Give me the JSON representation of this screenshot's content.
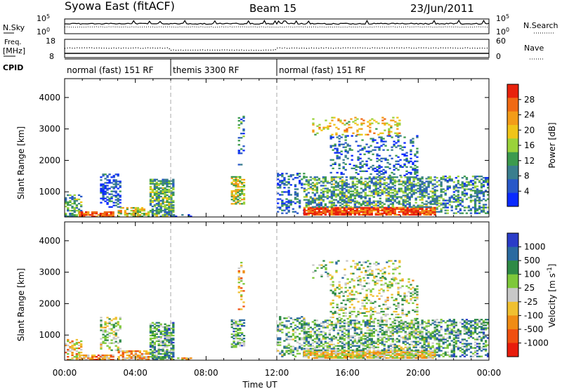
{
  "header": {
    "station": "Syowa East (fitACF)",
    "beam": "Beam 15",
    "date": "23/Jun/2011"
  },
  "labels": {
    "nsky": "N.Sky",
    "nsearch": "N.Search",
    "freq": "Freq.",
    "mhz": "[MHz]",
    "nave": "Nave",
    "cpid": "CPID"
  },
  "tick_labels": {
    "noise_top": "10^5",
    "noise_bottom": "10^0",
    "freq_top": "18",
    "freq_bottom": "8",
    "nave_top": "60",
    "nave_bottom": "0"
  },
  "cpid_segments": [
    {
      "label": "normal (fast) 151 RF",
      "start_hour": 0,
      "end_hour": 6
    },
    {
      "label": "themis 3300 RF",
      "start_hour": 6,
      "end_hour": 12
    },
    {
      "label": "normal (fast) 151 RF",
      "start_hour": 12,
      "end_hour": 24
    }
  ],
  "colors": {
    "power_scale": [
      "#0a2aff",
      "#2858c8",
      "#3a7e8e",
      "#3c9a4e",
      "#9ad23a",
      "#f0c418",
      "#f39c18",
      "#f06a14",
      "#e8220c"
    ],
    "velocity_scale": [
      "#2a3cc8",
      "#2a6aa0",
      "#2e8a46",
      "#7ec83a",
      "#c8c8c8",
      "#f0c030",
      "#f08c14",
      "#f05010",
      "#e81c0c"
    ]
  },
  "chart_data": [
    {
      "type": "heatmap",
      "name": "power",
      "ylabel": "Slant Range [km]",
      "xlabel": "",
      "xlim": [
        0,
        24
      ],
      "ylim": [
        200,
        4600
      ],
      "y_ticks": [
        1000,
        2000,
        3000,
        4000
      ],
      "colorbar_label": "Power [dB]",
      "colorbar_ticks": [
        4,
        8,
        12,
        16,
        20,
        24,
        28
      ],
      "colorbar_range": [
        0,
        32
      ],
      "regions": [
        {
          "t0": 0.0,
          "t1": 1.0,
          "r0": 200,
          "r1": 900,
          "level": 0.35,
          "density": 0.55
        },
        {
          "t0": 0.8,
          "t1": 2.8,
          "r0": 200,
          "r1": 400,
          "level": 0.9,
          "density": 0.8
        },
        {
          "t0": 2.0,
          "t1": 3.2,
          "r0": 500,
          "r1": 1600,
          "level": 0.15,
          "density": 0.4
        },
        {
          "t0": 3.0,
          "t1": 4.8,
          "r0": 200,
          "r1": 500,
          "level": 0.6,
          "density": 0.7
        },
        {
          "t0": 4.8,
          "t1": 6.2,
          "r0": 200,
          "r1": 1400,
          "level": 0.4,
          "density": 0.7
        },
        {
          "t0": 6.0,
          "t1": 7.2,
          "r0": 200,
          "r1": 300,
          "level": 0.2,
          "density": 0.5
        },
        {
          "t0": 9.4,
          "t1": 10.2,
          "r0": 600,
          "r1": 1500,
          "level": 0.55,
          "density": 0.6
        },
        {
          "t0": 9.8,
          "t1": 10.2,
          "r0": 1800,
          "r1": 3400,
          "level": 0.25,
          "density": 0.3
        },
        {
          "t0": 12.0,
          "t1": 13.6,
          "r0": 300,
          "r1": 1600,
          "level": 0.2,
          "density": 0.35
        },
        {
          "t0": 13.5,
          "t1": 21.0,
          "r0": 250,
          "r1": 500,
          "level": 0.9,
          "density": 0.9
        },
        {
          "t0": 13.5,
          "t1": 21.0,
          "r0": 500,
          "r1": 1500,
          "level": 0.35,
          "density": 0.55
        },
        {
          "t0": 15.0,
          "t1": 20.0,
          "r0": 1500,
          "r1": 2800,
          "level": 0.2,
          "density": 0.25
        },
        {
          "t0": 14.0,
          "t1": 19.0,
          "r0": 2800,
          "r1": 3400,
          "level": 0.65,
          "density": 0.2
        },
        {
          "t0": 21.0,
          "t1": 24.0,
          "r0": 300,
          "r1": 1500,
          "level": 0.3,
          "density": 0.45
        }
      ]
    },
    {
      "type": "heatmap",
      "name": "velocity",
      "ylabel": "Slant Range [km]",
      "xlabel": "Time UT",
      "xlim": [
        0,
        24
      ],
      "ylim": [
        200,
        4600
      ],
      "y_ticks": [
        1000,
        2000,
        3000,
        4000
      ],
      "x_ticks": [
        "00:00",
        "04:00",
        "08:00",
        "12:00",
        "16:00",
        "20:00",
        "00:00"
      ],
      "colorbar_label": "Velocity [m s^-1]",
      "colorbar_ticks": [
        "1000",
        "500",
        "100",
        "25",
        "-25",
        "-100",
        "-500",
        "-1000"
      ],
      "regions": [
        {
          "t0": 0.0,
          "t1": 1.0,
          "r0": 200,
          "r1": 900,
          "level": 0.6,
          "density": 0.55
        },
        {
          "t0": 0.8,
          "t1": 2.8,
          "r0": 200,
          "r1": 400,
          "level": 0.7,
          "density": 0.8
        },
        {
          "t0": 2.0,
          "t1": 3.2,
          "r0": 500,
          "r1": 1600,
          "level": 0.45,
          "density": 0.4
        },
        {
          "t0": 3.0,
          "t1": 4.8,
          "r0": 200,
          "r1": 500,
          "level": 0.65,
          "density": 0.7
        },
        {
          "t0": 4.8,
          "t1": 6.2,
          "r0": 200,
          "r1": 1400,
          "level": 0.3,
          "density": 0.7
        },
        {
          "t0": 6.0,
          "t1": 7.2,
          "r0": 200,
          "r1": 300,
          "level": 0.6,
          "density": 0.5
        },
        {
          "t0": 9.4,
          "t1": 10.2,
          "r0": 600,
          "r1": 1500,
          "level": 0.3,
          "density": 0.6
        },
        {
          "t0": 9.8,
          "t1": 10.2,
          "r0": 1800,
          "r1": 3400,
          "level": 0.6,
          "density": 0.3
        },
        {
          "t0": 12.0,
          "t1": 13.6,
          "r0": 300,
          "r1": 1600,
          "level": 0.35,
          "density": 0.35
        },
        {
          "t0": 13.5,
          "t1": 21.0,
          "r0": 250,
          "r1": 500,
          "level": 0.55,
          "density": 0.9
        },
        {
          "t0": 13.5,
          "t1": 21.0,
          "r0": 500,
          "r1": 1500,
          "level": 0.35,
          "density": 0.55
        },
        {
          "t0": 15.0,
          "t1": 20.0,
          "r0": 1500,
          "r1": 2800,
          "level": 0.45,
          "density": 0.25
        },
        {
          "t0": 14.0,
          "t1": 19.0,
          "r0": 2800,
          "r1": 3400,
          "level": 0.4,
          "density": 0.2
        },
        {
          "t0": 21.0,
          "t1": 24.0,
          "r0": 300,
          "r1": 1500,
          "level": 0.3,
          "density": 0.45
        }
      ]
    }
  ]
}
